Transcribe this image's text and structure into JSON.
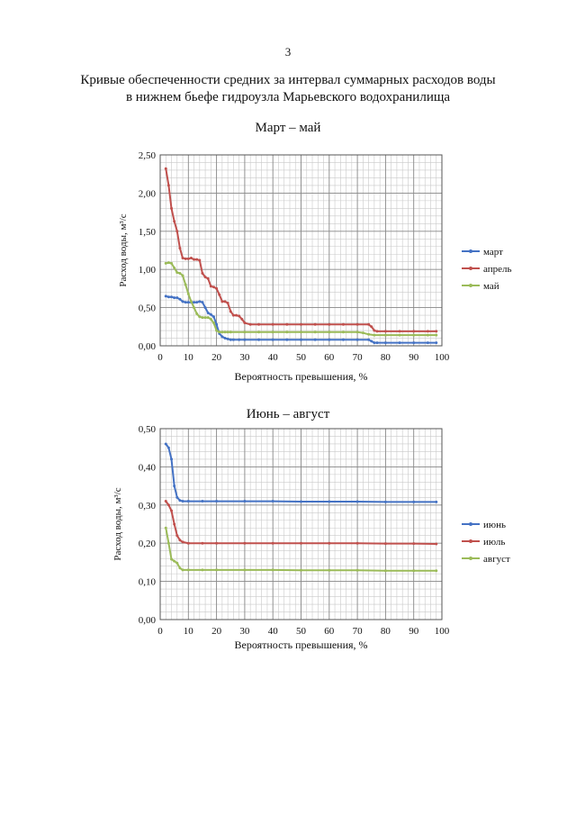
{
  "page": {
    "number": "3",
    "title_lines": [
      "Кривые обеспеченности средних за интервал суммарных расходов воды",
      "в нижнем бьефе гидроузла Марьевского водохранилища"
    ]
  },
  "chart_data": [
    {
      "type": "line",
      "title": "Март – май",
      "xlabel": "Вероятность превышения, %",
      "ylabel": "Расход воды, м³/с",
      "xlim": [
        0,
        100
      ],
      "ylim": [
        0,
        2.5
      ],
      "xticks": [
        0,
        10,
        20,
        30,
        40,
        50,
        60,
        70,
        80,
        90,
        100
      ],
      "xtick_labels": [
        "0",
        "10",
        "20",
        "30",
        "40",
        "50",
        "60",
        "70",
        "80",
        "90",
        "100"
      ],
      "yticks": [
        0,
        0.5,
        1.0,
        1.5,
        2.0,
        2.5
      ],
      "ytick_labels": [
        "0,00",
        "0,50",
        "1,00",
        "1,50",
        "2,00",
        "2,50"
      ],
      "grid": true,
      "legend": "right",
      "series": [
        {
          "name": "март",
          "color": "#4472c4",
          "x": [
            2,
            3,
            4,
            5,
            6,
            7,
            8,
            9,
            10,
            11,
            12,
            13,
            14,
            15,
            16,
            17,
            18,
            19,
            20,
            21,
            22,
            23,
            24,
            25,
            26,
            28,
            30,
            35,
            40,
            45,
            50,
            55,
            60,
            65,
            70,
            74,
            75,
            76,
            77,
            80,
            85,
            90,
            95,
            98
          ],
          "y": [
            0.65,
            0.64,
            0.64,
            0.63,
            0.63,
            0.61,
            0.58,
            0.57,
            0.57,
            0.57,
            0.57,
            0.57,
            0.58,
            0.57,
            0.5,
            0.43,
            0.41,
            0.38,
            0.28,
            0.16,
            0.12,
            0.1,
            0.09,
            0.08,
            0.08,
            0.08,
            0.08,
            0.08,
            0.08,
            0.08,
            0.08,
            0.08,
            0.08,
            0.08,
            0.08,
            0.08,
            0.06,
            0.04,
            0.04,
            0.04,
            0.04,
            0.04,
            0.04,
            0.04
          ]
        },
        {
          "name": "апрель",
          "color": "#c0504d",
          "x": [
            2,
            3,
            4,
            5,
            6,
            7,
            8,
            9,
            10,
            11,
            12,
            13,
            14,
            15,
            16,
            17,
            18,
            19,
            20,
            21,
            22,
            23,
            24,
            25,
            26,
            27,
            28,
            29,
            30,
            32,
            35,
            40,
            45,
            50,
            55,
            60,
            65,
            70,
            74,
            75,
            76,
            77,
            80,
            85,
            90,
            95,
            98
          ],
          "y": [
            2.32,
            2.1,
            1.8,
            1.63,
            1.5,
            1.28,
            1.15,
            1.14,
            1.14,
            1.15,
            1.13,
            1.13,
            1.12,
            0.95,
            0.9,
            0.88,
            0.78,
            0.77,
            0.75,
            0.67,
            0.58,
            0.58,
            0.56,
            0.45,
            0.4,
            0.4,
            0.39,
            0.35,
            0.3,
            0.28,
            0.28,
            0.28,
            0.28,
            0.28,
            0.28,
            0.28,
            0.28,
            0.28,
            0.28,
            0.25,
            0.2,
            0.19,
            0.19,
            0.19,
            0.19,
            0.19,
            0.19
          ]
        },
        {
          "name": "май",
          "color": "#9bbb59",
          "x": [
            2,
            3,
            4,
            5,
            6,
            7,
            8,
            9,
            10,
            11,
            12,
            13,
            14,
            15,
            16,
            17,
            18,
            19,
            20,
            21,
            22,
            23,
            24,
            25,
            30,
            35,
            40,
            45,
            50,
            55,
            60,
            65,
            70,
            72,
            74,
            76,
            80,
            85,
            90,
            95,
            98
          ],
          "y": [
            1.08,
            1.09,
            1.08,
            1.02,
            0.96,
            0.95,
            0.92,
            0.8,
            0.68,
            0.58,
            0.5,
            0.42,
            0.38,
            0.37,
            0.37,
            0.37,
            0.35,
            0.3,
            0.2,
            0.18,
            0.18,
            0.18,
            0.18,
            0.18,
            0.18,
            0.18,
            0.18,
            0.18,
            0.18,
            0.18,
            0.18,
            0.18,
            0.18,
            0.17,
            0.15,
            0.14,
            0.14,
            0.14,
            0.14,
            0.14,
            0.14
          ]
        }
      ]
    },
    {
      "type": "line",
      "title": "Июнь – август",
      "xlabel": "Вероятность превышения, %",
      "ylabel": "Расход воды, м³/с",
      "xlim": [
        0,
        100
      ],
      "ylim": [
        0,
        0.5
      ],
      "xticks": [
        0,
        10,
        20,
        30,
        40,
        50,
        60,
        70,
        80,
        90,
        100
      ],
      "xtick_labels": [
        "0",
        "10",
        "20",
        "30",
        "40",
        "50",
        "60",
        "70",
        "80",
        "90",
        "100"
      ],
      "yticks": [
        0,
        0.1,
        0.2,
        0.3,
        0.4,
        0.5
      ],
      "ytick_labels": [
        "0,00",
        "0,10",
        "0,20",
        "0,30",
        "0,40",
        "0,50"
      ],
      "grid": true,
      "legend": "right",
      "series": [
        {
          "name": "июнь",
          "color": "#4472c4",
          "x": [
            2,
            3,
            4,
            5,
            6,
            7,
            8,
            10,
            15,
            20,
            30,
            40,
            50,
            60,
            70,
            80,
            90,
            98
          ],
          "y": [
            0.46,
            0.45,
            0.42,
            0.35,
            0.32,
            0.312,
            0.31,
            0.31,
            0.31,
            0.31,
            0.31,
            0.31,
            0.309,
            0.309,
            0.309,
            0.308,
            0.308,
            0.308
          ]
        },
        {
          "name": "июль",
          "color": "#c0504d",
          "x": [
            2,
            3,
            4,
            5,
            6,
            7,
            8,
            10,
            15,
            20,
            30,
            40,
            50,
            60,
            70,
            80,
            90,
            98
          ],
          "y": [
            0.31,
            0.3,
            0.285,
            0.25,
            0.22,
            0.208,
            0.203,
            0.2,
            0.2,
            0.2,
            0.2,
            0.2,
            0.2,
            0.2,
            0.2,
            0.199,
            0.199,
            0.198
          ]
        },
        {
          "name": "август",
          "color": "#9bbb59",
          "x": [
            2,
            3,
            4,
            5,
            6,
            7,
            8,
            10,
            15,
            20,
            30,
            40,
            50,
            60,
            70,
            80,
            90,
            98
          ],
          "y": [
            0.24,
            0.2,
            0.158,
            0.153,
            0.148,
            0.135,
            0.13,
            0.13,
            0.13,
            0.13,
            0.13,
            0.13,
            0.129,
            0.129,
            0.129,
            0.128,
            0.128,
            0.128
          ]
        }
      ]
    }
  ]
}
